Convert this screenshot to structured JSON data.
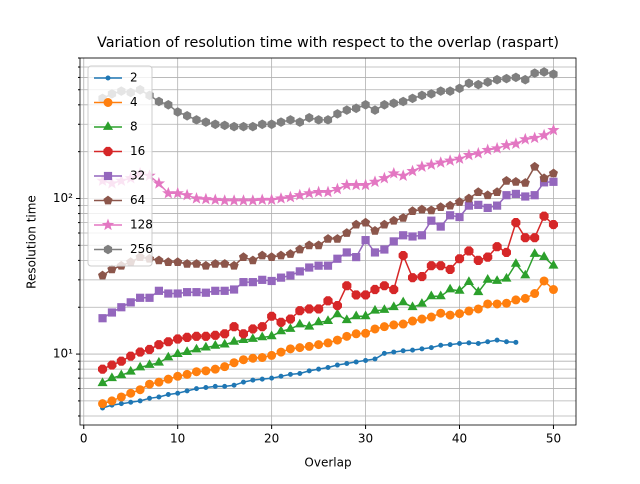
{
  "chart_data": {
    "type": "line",
    "title": "Variation of resolution time with respect to the overlap (raspart)",
    "x_label": "Overlap",
    "y_label": "Resolution time",
    "yscale": "log",
    "grid": true,
    "legend_loc": "upper-left",
    "xlim": [
      -0.4,
      52.4
    ],
    "ylim": [
      3.5,
      800
    ],
    "xticks": [
      0,
      10,
      20,
      30,
      40,
      50
    ],
    "yticks": [
      {
        "value": 10,
        "label": "10¹"
      },
      {
        "value": 100,
        "label": "10²"
      }
    ],
    "yminorticks": [
      4,
      5,
      6,
      7,
      8,
      9,
      20,
      30,
      40,
      50,
      60,
      70,
      80,
      90,
      200,
      300,
      400,
      500,
      600,
      700,
      800
    ],
    "x": [
      2,
      3,
      4,
      5,
      6,
      7,
      8,
      9,
      10,
      11,
      12,
      13,
      14,
      15,
      16,
      17,
      18,
      19,
      20,
      21,
      22,
      23,
      24,
      25,
      26,
      27,
      28,
      29,
      30,
      31,
      32,
      33,
      34,
      35,
      36,
      37,
      38,
      39,
      40,
      41,
      42,
      43,
      44,
      45,
      46,
      47,
      48,
      49,
      50
    ],
    "series": [
      {
        "name": "2",
        "color": "#1f77b4",
        "marker": "dot",
        "values": [
          4.5,
          4.7,
          4.8,
          4.9,
          5.0,
          5.2,
          5.3,
          5.5,
          5.6,
          5.8,
          6.0,
          6.1,
          6.2,
          6.2,
          6.3,
          6.6,
          6.8,
          6.9,
          7.0,
          7.2,
          7.4,
          7.5,
          7.8,
          8.0,
          8.2,
          8.5,
          8.7,
          8.9,
          9.1,
          9.3,
          10.1,
          10.3,
          10.5,
          10.6,
          10.8,
          11.0,
          11.4,
          11.5,
          11.7,
          11.8,
          11.7,
          12.0,
          12.3,
          12.0,
          11.9,
          null,
          null,
          null,
          null
        ]
      },
      {
        "name": "4",
        "color": "#ff7f0e",
        "marker": "circle",
        "values": [
          4.8,
          5.0,
          5.3,
          5.6,
          5.9,
          6.4,
          6.6,
          6.9,
          7.2,
          7.4,
          7.7,
          7.8,
          8.0,
          8.3,
          8.8,
          9.2,
          9.4,
          9.5,
          9.8,
          10.3,
          10.8,
          11.0,
          11.2,
          11.5,
          11.8,
          12.3,
          13.0,
          13.5,
          13.6,
          14.5,
          15.0,
          15.4,
          15.6,
          16.3,
          16.8,
          17.3,
          18.3,
          17.8,
          18.2,
          18.9,
          19.5,
          21.0,
          21.0,
          21.2,
          22.3,
          22.8,
          24.5,
          29.5,
          26.0
        ]
      },
      {
        "name": "8",
        "color": "#2ca02c",
        "marker": "triangle",
        "values": [
          6.5,
          7.0,
          7.3,
          7.7,
          8.2,
          8.5,
          8.8,
          9.5,
          10.0,
          10.3,
          10.7,
          11.0,
          11.3,
          11.5,
          12.0,
          12.3,
          12.5,
          12.8,
          13.0,
          14.0,
          14.5,
          15.5,
          15.0,
          16.0,
          16.3,
          18.0,
          16.5,
          17.5,
          17.5,
          19.0,
          19.2,
          20.0,
          21.5,
          20.0,
          21.0,
          23.5,
          23.5,
          26.0,
          25.5,
          29.0,
          25.0,
          30.0,
          29.5,
          30.5,
          38.0,
          32.0,
          44.0,
          42.0,
          37.0
        ]
      },
      {
        "name": "16",
        "color": "#d62728",
        "marker": "octagon",
        "values": [
          8.0,
          8.5,
          9.0,
          9.7,
          10.3,
          10.7,
          11.5,
          12.0,
          12.5,
          12.8,
          13.0,
          13.0,
          13.2,
          13.5,
          15.0,
          13.5,
          14.5,
          15.0,
          17.5,
          16.0,
          16.8,
          19.0,
          19.5,
          19.5,
          22.0,
          20.5,
          27.5,
          24.0,
          24.0,
          26.0,
          27.5,
          26.0,
          43.0,
          31.0,
          31.5,
          37.0,
          37.0,
          35.0,
          41.0,
          46.0,
          40.0,
          42.0,
          49.0,
          45.0,
          70.0,
          56.0,
          56.0,
          77.0,
          68.0
        ]
      },
      {
        "name": "32",
        "color": "#9467bd",
        "marker": "square",
        "values": [
          17.0,
          18.5,
          20.0,
          21.5,
          23.0,
          23.0,
          25.5,
          24.5,
          24.5,
          25.0,
          25.0,
          24.8,
          25.5,
          25.5,
          26.0,
          29.0,
          29.0,
          30.0,
          29.5,
          31.0,
          32.0,
          34.0,
          36.0,
          37.0,
          37.0,
          41.0,
          45.0,
          42.0,
          54.0,
          45.0,
          47.0,
          53.0,
          58.0,
          57.0,
          58.0,
          72.0,
          66.0,
          78.0,
          76.0,
          90.0,
          91.0,
          87.0,
          90.0,
          105.0,
          107.0,
          103.0,
          105.0,
          127.0,
          128.0
        ]
      },
      {
        "name": "64",
        "color": "#8c564b",
        "marker": "pentagon",
        "values": [
          32,
          35,
          37,
          39,
          42,
          41,
          40,
          39,
          39,
          38,
          38,
          37,
          38,
          38,
          37,
          42,
          40,
          43,
          42,
          43,
          44,
          47,
          50,
          50,
          55,
          55,
          60,
          68,
          70,
          62,
          68,
          72,
          75,
          83,
          85,
          84,
          88,
          90,
          95,
          100,
          110,
          105,
          110,
          130,
          128,
          126,
          160,
          135,
          145
        ]
      },
      {
        "name": "128",
        "color": "#e377c2",
        "marker": "star",
        "values": [
          130,
          125,
          130,
          135,
          145,
          140,
          125,
          108,
          108,
          105,
          100,
          99,
          98,
          97,
          97,
          97,
          97,
          98,
          98,
          100,
          102,
          105,
          108,
          110,
          110,
          115,
          122,
          122,
          122,
          128,
          135,
          145,
          140,
          150,
          160,
          165,
          170,
          175,
          180,
          190,
          195,
          205,
          210,
          220,
          225,
          240,
          245,
          255,
          275
        ]
      },
      {
        "name": "256",
        "color": "#7f7f7f",
        "marker": "hexagon",
        "values": [
          440,
          470,
          490,
          480,
          500,
          460,
          420,
          400,
          360,
          340,
          320,
          310,
          300,
          295,
          290,
          290,
          290,
          300,
          300,
          310,
          320,
          310,
          330,
          320,
          320,
          350,
          370,
          380,
          400,
          370,
          400,
          410,
          420,
          440,
          460,
          470,
          490,
          490,
          510,
          550,
          540,
          560,
          580,
          590,
          600,
          580,
          640,
          650,
          630
        ]
      }
    ]
  }
}
